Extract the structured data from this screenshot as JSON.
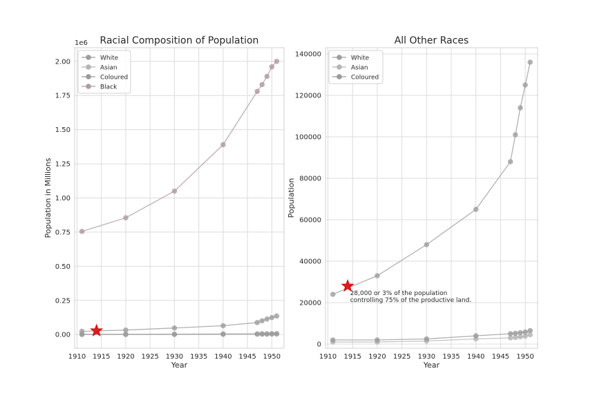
{
  "chart_data": [
    {
      "type": "line",
      "title": "Racial Composition of Population",
      "xlabel": "Year",
      "ylabel": "Population in Millions",
      "offset_text": "1e6",
      "xlim": [
        1909.5,
        1952.5
      ],
      "ylim": [
        -100000,
        2100000
      ],
      "x_ticks": [
        1910,
        1915,
        1920,
        1925,
        1930,
        1935,
        1940,
        1945,
        1950
      ],
      "y_ticks": [
        0,
        250000,
        500000,
        750000,
        1000000,
        1250000,
        1500000,
        1750000,
        2000000
      ],
      "y_tick_labels": [
        "0.00",
        "0.25",
        "0.50",
        "0.75",
        "1.00",
        "1.25",
        "1.50",
        "1.75",
        "2.00"
      ],
      "grid": true,
      "legend_position": "top-left",
      "x": [
        1911,
        1920,
        1930,
        1940,
        1947,
        1948,
        1949,
        1950,
        1951
      ],
      "series": [
        {
          "name": "White",
          "color": "#9e9e9e",
          "values": [
            24000,
            33000,
            48000,
            65000,
            88000,
            101000,
            114000,
            125000,
            136000
          ]
        },
        {
          "name": "Asian",
          "color": "#b5b5b5",
          "values": [
            1000,
            1000,
            1500,
            2500,
            3000,
            3200,
            3500,
            3800,
            4500
          ]
        },
        {
          "name": "Coloured",
          "color": "#9a9a9a",
          "values": [
            2000,
            2000,
            2500,
            4000,
            5000,
            5200,
            5500,
            5800,
            6500
          ]
        },
        {
          "name": "Black",
          "color": "#b09a9e",
          "values": [
            755000,
            855000,
            1050000,
            1390000,
            1780000,
            1830000,
            1890000,
            1960000,
            2000000
          ]
        }
      ],
      "highlight": {
        "marker": "star",
        "color": "#e31a1c",
        "x": 1914,
        "y": 28000
      }
    },
    {
      "type": "line",
      "title": "All Other Races",
      "xlabel": "Year",
      "ylabel": "Population",
      "xlim": [
        1909.5,
        1952.5
      ],
      "ylim": [
        -2000,
        143000
      ],
      "x_ticks": [
        1910,
        1915,
        1920,
        1925,
        1930,
        1935,
        1940,
        1945,
        1950
      ],
      "y_ticks": [
        0,
        20000,
        40000,
        60000,
        80000,
        100000,
        120000,
        140000
      ],
      "y_tick_labels": [
        "0",
        "20000",
        "40000",
        "60000",
        "80000",
        "100000",
        "120000",
        "140000"
      ],
      "grid": true,
      "legend_position": "top-left",
      "x": [
        1911,
        1920,
        1930,
        1940,
        1947,
        1948,
        1949,
        1950,
        1951
      ],
      "series": [
        {
          "name": "White",
          "color": "#9e9e9e",
          "values": [
            24000,
            33000,
            48000,
            65000,
            88000,
            101000,
            114000,
            125000,
            136000
          ]
        },
        {
          "name": "Asian",
          "color": "#b5b5b5",
          "values": [
            1000,
            1000,
            1500,
            2500,
            3000,
            3200,
            3500,
            3800,
            4500
          ]
        },
        {
          "name": "Coloured",
          "color": "#9a9a9a",
          "values": [
            2000,
            2000,
            2500,
            4000,
            5000,
            5200,
            5500,
            5800,
            6500
          ]
        }
      ],
      "highlight": {
        "marker": "star",
        "color": "#e31a1c",
        "x": 1914,
        "y": 28000
      },
      "annotation": {
        "lines": [
          "28,000 or 3% of the population",
          " controlling 75% of the productive land."
        ],
        "x": 1914.5,
        "y": 28000
      }
    }
  ]
}
